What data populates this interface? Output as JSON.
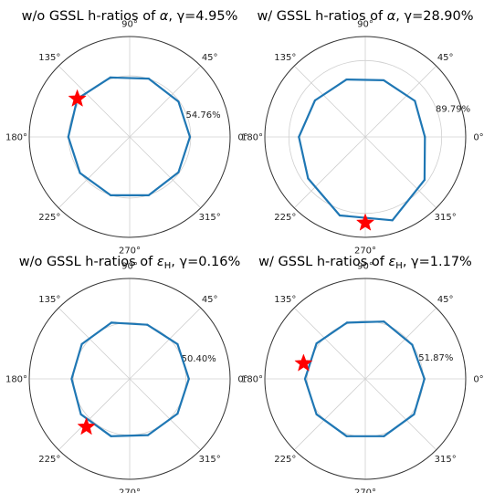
{
  "chart_data": [
    {
      "type": "polar-line",
      "title_prefix": "w/o GSSL h-ratios of ",
      "title_symbol": "α",
      "title_sub": "",
      "title_gamma": ", γ=4.95%",
      "theta_tick_labels": [
        "0°",
        "45°",
        "90°",
        "135°",
        "180°",
        "225°",
        "270°",
        "315°"
      ],
      "r_tick_label": "54.76%",
      "r_tick_value": 54.76,
      "r_max": 90,
      "grid": true,
      "series": {
        "theta_deg": [
          0,
          36,
          72,
          108,
          144,
          180,
          216,
          252,
          288,
          324
        ],
        "r": [
          54,
          54,
          55,
          56,
          58,
          55,
          55,
          55,
          55,
          54
        ],
        "color": "#1f77b4"
      },
      "highlight": {
        "theta_deg": 144,
        "r": 58,
        "marker": "star",
        "color": "#ff0000"
      }
    },
    {
      "type": "polar-line",
      "title_prefix": "w/ GSSL h-ratios of ",
      "title_symbol": "α",
      "title_sub": "",
      "title_gamma": ", γ=28.90%",
      "theta_tick_labels": [
        "0°",
        "45°",
        "90°",
        "135°",
        "180°",
        "225°",
        "270°",
        "315°"
      ],
      "r_tick_label": "89.79%",
      "r_tick_value": 89.79,
      "r_max": 118,
      "grid": true,
      "series": {
        "theta_deg": [
          0,
          36,
          72,
          108,
          144,
          180,
          216,
          252,
          288,
          324
        ],
        "r": [
          70,
          72,
          70,
          71,
          73,
          78,
          83,
          97,
          103,
          86
        ],
        "color": "#1f77b4"
      },
      "highlight": {
        "theta_deg": 270,
        "r": 101,
        "marker": "star",
        "color": "#ff0000"
      }
    },
    {
      "type": "polar-line",
      "title_prefix": "w/o GSSL h-ratios of ",
      "title_symbol": "ε",
      "title_sub": "H",
      "title_gamma": ", γ=0.16%",
      "theta_tick_labels": [
        "0°",
        "45°",
        "90°",
        "135°",
        "180°",
        "225°",
        "270°",
        "315°"
      ],
      "r_tick_label": "50.40%",
      "r_tick_value": 50.4,
      "r_max": 90,
      "grid": true,
      "series": {
        "theta_deg": [
          0,
          36,
          72,
          108,
          144,
          180,
          216,
          252,
          288,
          324
        ],
        "r": [
          53,
          53,
          51,
          53,
          53,
          52,
          54,
          54,
          53,
          53
        ],
        "color": "#1f77b4"
      },
      "highlight": {
        "theta_deg": 228,
        "r": 58,
        "marker": "star",
        "color": "#ff0000"
      }
    },
    {
      "type": "polar-line",
      "title_prefix": "w/ GSSL h-ratios of ",
      "title_symbol": "ε",
      "title_sub": "H",
      "title_gamma": ", γ=1.17%",
      "theta_tick_labels": [
        "0°",
        "45°",
        "90°",
        "135°",
        "180°",
        "225°",
        "270°",
        "315°"
      ],
      "r_tick_label": "51.87%",
      "r_tick_value": 51.87,
      "r_max": 90,
      "grid": true,
      "series": {
        "theta_deg": [
          0,
          36,
          72,
          108,
          144,
          180,
          216,
          252,
          288,
          324
        ],
        "r": [
          53,
          52,
          54,
          53,
          54,
          54,
          54,
          54,
          54,
          54
        ],
        "color": "#1f77b4"
      },
      "highlight": {
        "theta_deg": 166,
        "r": 57,
        "marker": "star",
        "color": "#ff0000"
      }
    }
  ]
}
